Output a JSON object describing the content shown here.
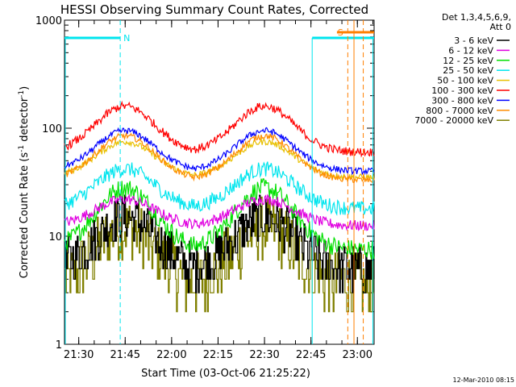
{
  "chart_data": {
    "type": "line",
    "title": "HESSI Observing Summary Count Rates, Corrected",
    "xlabel": "Start Time (03-Oct-06 21:25:22)",
    "ylabel_main": "Corrected Count Rate (s",
    "ylabel_sup1": "-1",
    "ylabel_mid": " detector",
    "ylabel_sup2": "-1",
    "ylabel_end": ")",
    "footer_timestamp": "12-Mar-2010 08:15",
    "y_scale": "log",
    "ylim": [
      1,
      1000
    ],
    "xlim_minutes": [
      0,
      100
    ],
    "x_ticks": [
      {
        "m": 4.6,
        "label": "21:30"
      },
      {
        "m": 19.6,
        "label": "21:45"
      },
      {
        "m": 34.6,
        "label": "22:00"
      },
      {
        "m": 49.6,
        "label": "22:15"
      },
      {
        "m": 64.6,
        "label": "22:30"
      },
      {
        "m": 79.6,
        "label": "22:45"
      },
      {
        "m": 94.6,
        "label": "23:00"
      }
    ],
    "y_ticks": [
      {
        "v": 1,
        "label": "1"
      },
      {
        "v": 10,
        "label": "10"
      },
      {
        "v": 100,
        "label": "100"
      },
      {
        "v": 1000,
        "label": "1000"
      }
    ],
    "legend": {
      "header1": "Det 1,3,4,5,6,9,",
      "header2": "Att 0",
      "placement": "outside-right"
    },
    "markers": {
      "night_label": "N",
      "saa_label": "S",
      "night_color": "#00e5ee",
      "saa_color": "#ff7f00",
      "night_intervals_minutes": [
        [
          0,
          18
        ],
        [
          80,
          100
        ]
      ],
      "saa_flag_minutes": [
        88,
        100
      ]
    },
    "series": [
      {
        "name": "3 - 6 keV",
        "color": "#000000",
        "base": 5.0,
        "peak": 15,
        "noise": 0.22,
        "quantize": true
      },
      {
        "name": "6 - 12 keV",
        "color": "#e000e0",
        "base": 12.5,
        "peak": 22,
        "noise": 0.05
      },
      {
        "name": "12 - 25 keV",
        "color": "#00e000",
        "base": 7.5,
        "peak": 28,
        "noise": 0.09
      },
      {
        "name": "25 - 50 keV",
        "color": "#00e5ee",
        "base": 18,
        "peak": 42,
        "noise": 0.07
      },
      {
        "name": "50 - 100 keV",
        "color": "#e8c000",
        "base": 35,
        "peak": 75,
        "noise": 0.03
      },
      {
        "name": "100 - 300 keV",
        "color": "#ff0000",
        "base": 60,
        "peak": 160,
        "noise": 0.04
      },
      {
        "name": "300 - 800 keV",
        "color": "#0000ff",
        "base": 40,
        "peak": 95,
        "noise": 0.03
      },
      {
        "name": "800 - 7000 keV",
        "color": "#ff8c00",
        "base": 33,
        "peak": 85,
        "noise": 0.03
      },
      {
        "name": "7000 - 20000 keV",
        "color": "#808000",
        "base": 3.5,
        "peak": 12,
        "noise": 0.3,
        "quantize": true
      }
    ]
  }
}
